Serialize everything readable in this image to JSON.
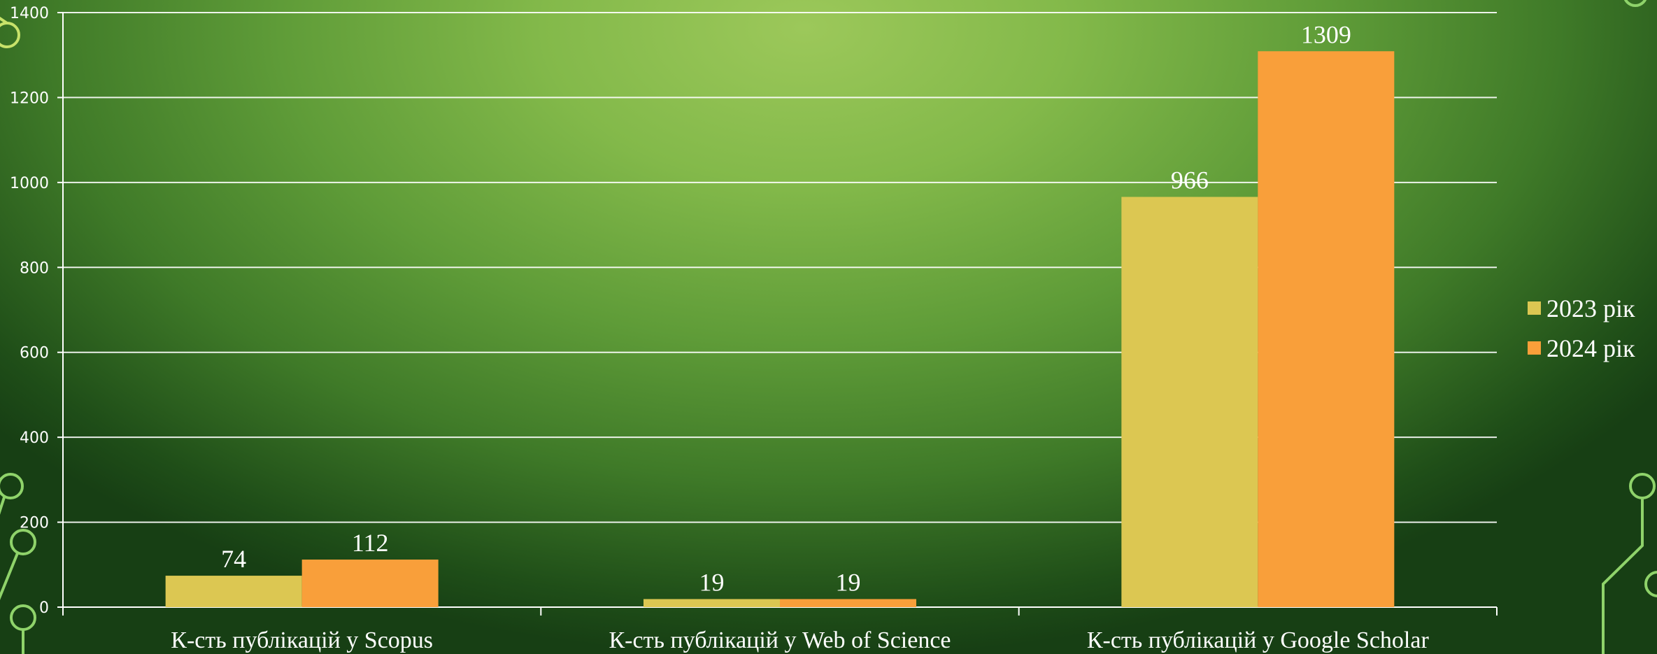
{
  "chart_data": {
    "type": "bar",
    "title": "",
    "xlabel": "",
    "ylabel": "",
    "ylim": [
      0,
      1400
    ],
    "yticks": [
      0,
      200,
      400,
      600,
      800,
      1000,
      1200,
      1400
    ],
    "grid": true,
    "legend_position": "right",
    "categories": [
      "К-сть публікацій у Scopus",
      "К-сть публікацій у Web of Science",
      "К-сть публікацій у Google Scholar"
    ],
    "series": [
      {
        "name": "2023 рік",
        "values": [
          74,
          19,
          966
        ],
        "color": "#dcc752"
      },
      {
        "name": "2024 рік",
        "values": [
          112,
          19,
          1309
        ],
        "color": "#f99f3a"
      }
    ]
  }
}
